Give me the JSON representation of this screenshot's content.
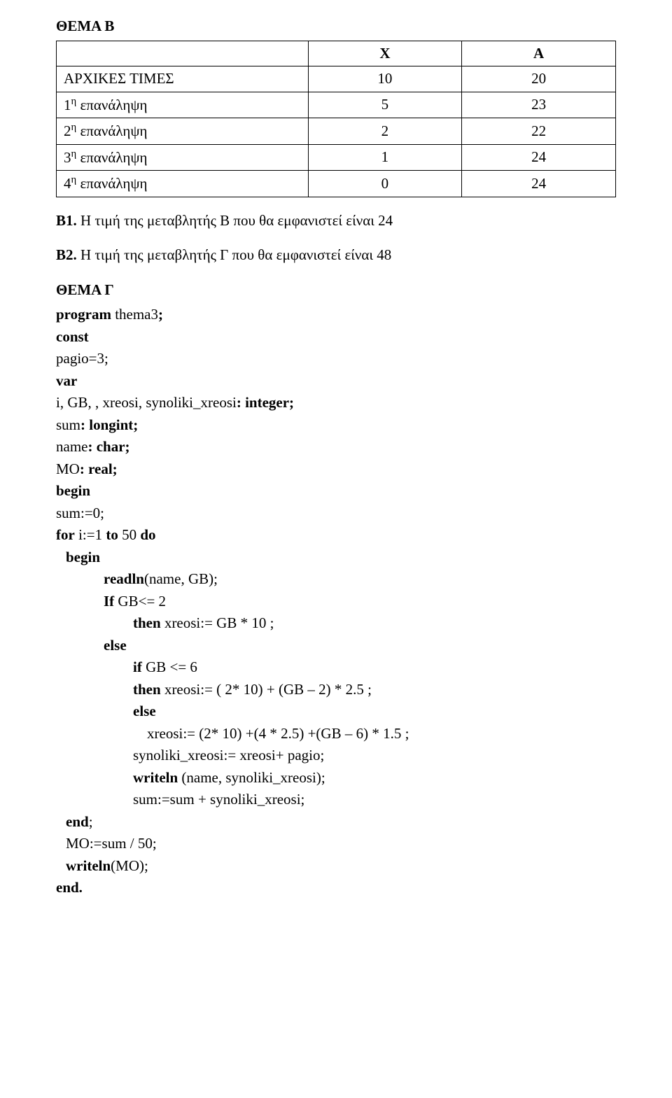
{
  "thema_b_title": "ΘΕΜΑ Β",
  "table": {
    "columns": [
      "",
      "Χ",
      "Α"
    ],
    "rows": [
      [
        "ΑΡΧΙΚΕΣ ΤΙΜΕΣ",
        "10",
        "20"
      ],
      [
        "1η επανάληψη",
        "5",
        "23"
      ],
      [
        "2η επανάληψη",
        "2",
        "22"
      ],
      [
        "3η επανάληψη",
        "1",
        "24"
      ],
      [
        "4η επανάληψη",
        "0",
        "24"
      ]
    ],
    "superscripts": [
      false,
      true,
      true,
      true,
      true
    ]
  },
  "b1_label": "Β1.",
  "b1_text": " Η τιμή της μεταβλητής Β που θα εμφανιστεί είναι 24",
  "b2_label": "Β2.",
  "b2_text": " Η τιμή της μεταβλητής Γ που θα εμφανιστεί είναι 48",
  "thema_g_title": "ΘΕΜΑ Γ",
  "code": {
    "l1a": "program",
    "l1b": " thema3",
    "l1c": ";",
    "l2a": "const",
    "l3": "pagio=3;",
    "l4a": "var",
    "l5a": "i, GB, , xreosi, synoliki_xreosi",
    "l5b": ": integer;",
    "l6a": "sum",
    "l6b": ": longint;",
    "l7a": "name",
    "l7b": ": char;",
    "l8a": "MO",
    "l8b": ": real;",
    "l9a": "begin",
    "l10": "sum:=0;",
    "l11a": "for",
    "l11b": " i:=1 ",
    "l11c": "to",
    "l11d": " 50 ",
    "l11e": "do",
    "l12": "begin",
    "l13a": "readln",
    "l13b": "(name, GB);",
    "l14a": "If",
    "l14b": " GB<= 2",
    "l15a": "then",
    "l15b": " xreosi:= GB * 10 ;",
    "l16a": "else",
    "l17a": "if",
    "l17b": " GB <= 6",
    "l18a": "then",
    "l18b": " xreosi:= ( 2* 10) + (GB – 2) * 2.5 ;",
    "l19a": "else",
    "l20": "xreosi:= (2* 10) +(4 * 2.5) +(GB – 6) * 1.5 ;",
    "l21": "synoliki_xreosi:= xreosi+ pagio;",
    "l22a": "writeln",
    "l22b": " (name, synoliki_xreosi);",
    "l23": "sum:=sum + synoliki_xreosi;",
    "l24a": "end",
    "l24b": ";",
    "l25": "MO:=sum / 50;",
    "l26a": "writeln",
    "l26b": "(MO);",
    "l27a": "end."
  }
}
